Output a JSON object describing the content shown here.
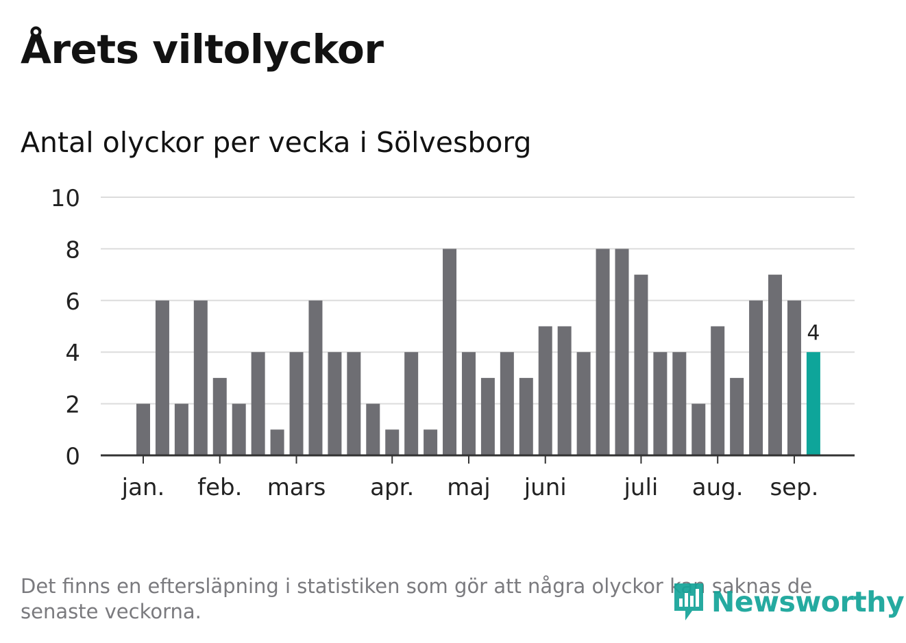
{
  "title": "Årets viltolyckor",
  "subtitle": "Antal olyckor per vecka i Sölvesborg",
  "footnote": "Det finns en eftersläpning i statistiken som gör att några olyckor kan saknas de senaste veckorna.",
  "logo": {
    "text": "Newsworthy",
    "icon": "bar-chart-speech-icon"
  },
  "colors": {
    "bar": "#6e6e73",
    "highlight": "#0ea59a",
    "grid": "#dcdcdc",
    "axis": "#333333"
  },
  "chart_data": {
    "type": "bar",
    "ylim": [
      0,
      10
    ],
    "yticks": [
      "0",
      "2",
      "4",
      "6",
      "8",
      "10"
    ],
    "grid": true,
    "values": [
      2,
      6,
      2,
      6,
      3,
      2,
      4,
      1,
      4,
      6,
      4,
      4,
      2,
      1,
      4,
      1,
      8,
      4,
      3,
      4,
      3,
      5,
      5,
      4,
      8,
      8,
      7,
      4,
      4,
      2,
      5,
      3,
      6,
      7,
      6,
      4
    ],
    "highlight_index": 35,
    "highlight_label": "4",
    "month_ticks": [
      {
        "label": "jan.",
        "bar": 0
      },
      {
        "label": "feb.",
        "bar": 4
      },
      {
        "label": "mars",
        "bar": 8
      },
      {
        "label": "apr.",
        "bar": 13
      },
      {
        "label": "maj",
        "bar": 17
      },
      {
        "label": "juni",
        "bar": 21
      },
      {
        "label": "juli",
        "bar": 26
      },
      {
        "label": "aug.",
        "bar": 30
      },
      {
        "label": "sep.",
        "bar": 34
      }
    ]
  }
}
